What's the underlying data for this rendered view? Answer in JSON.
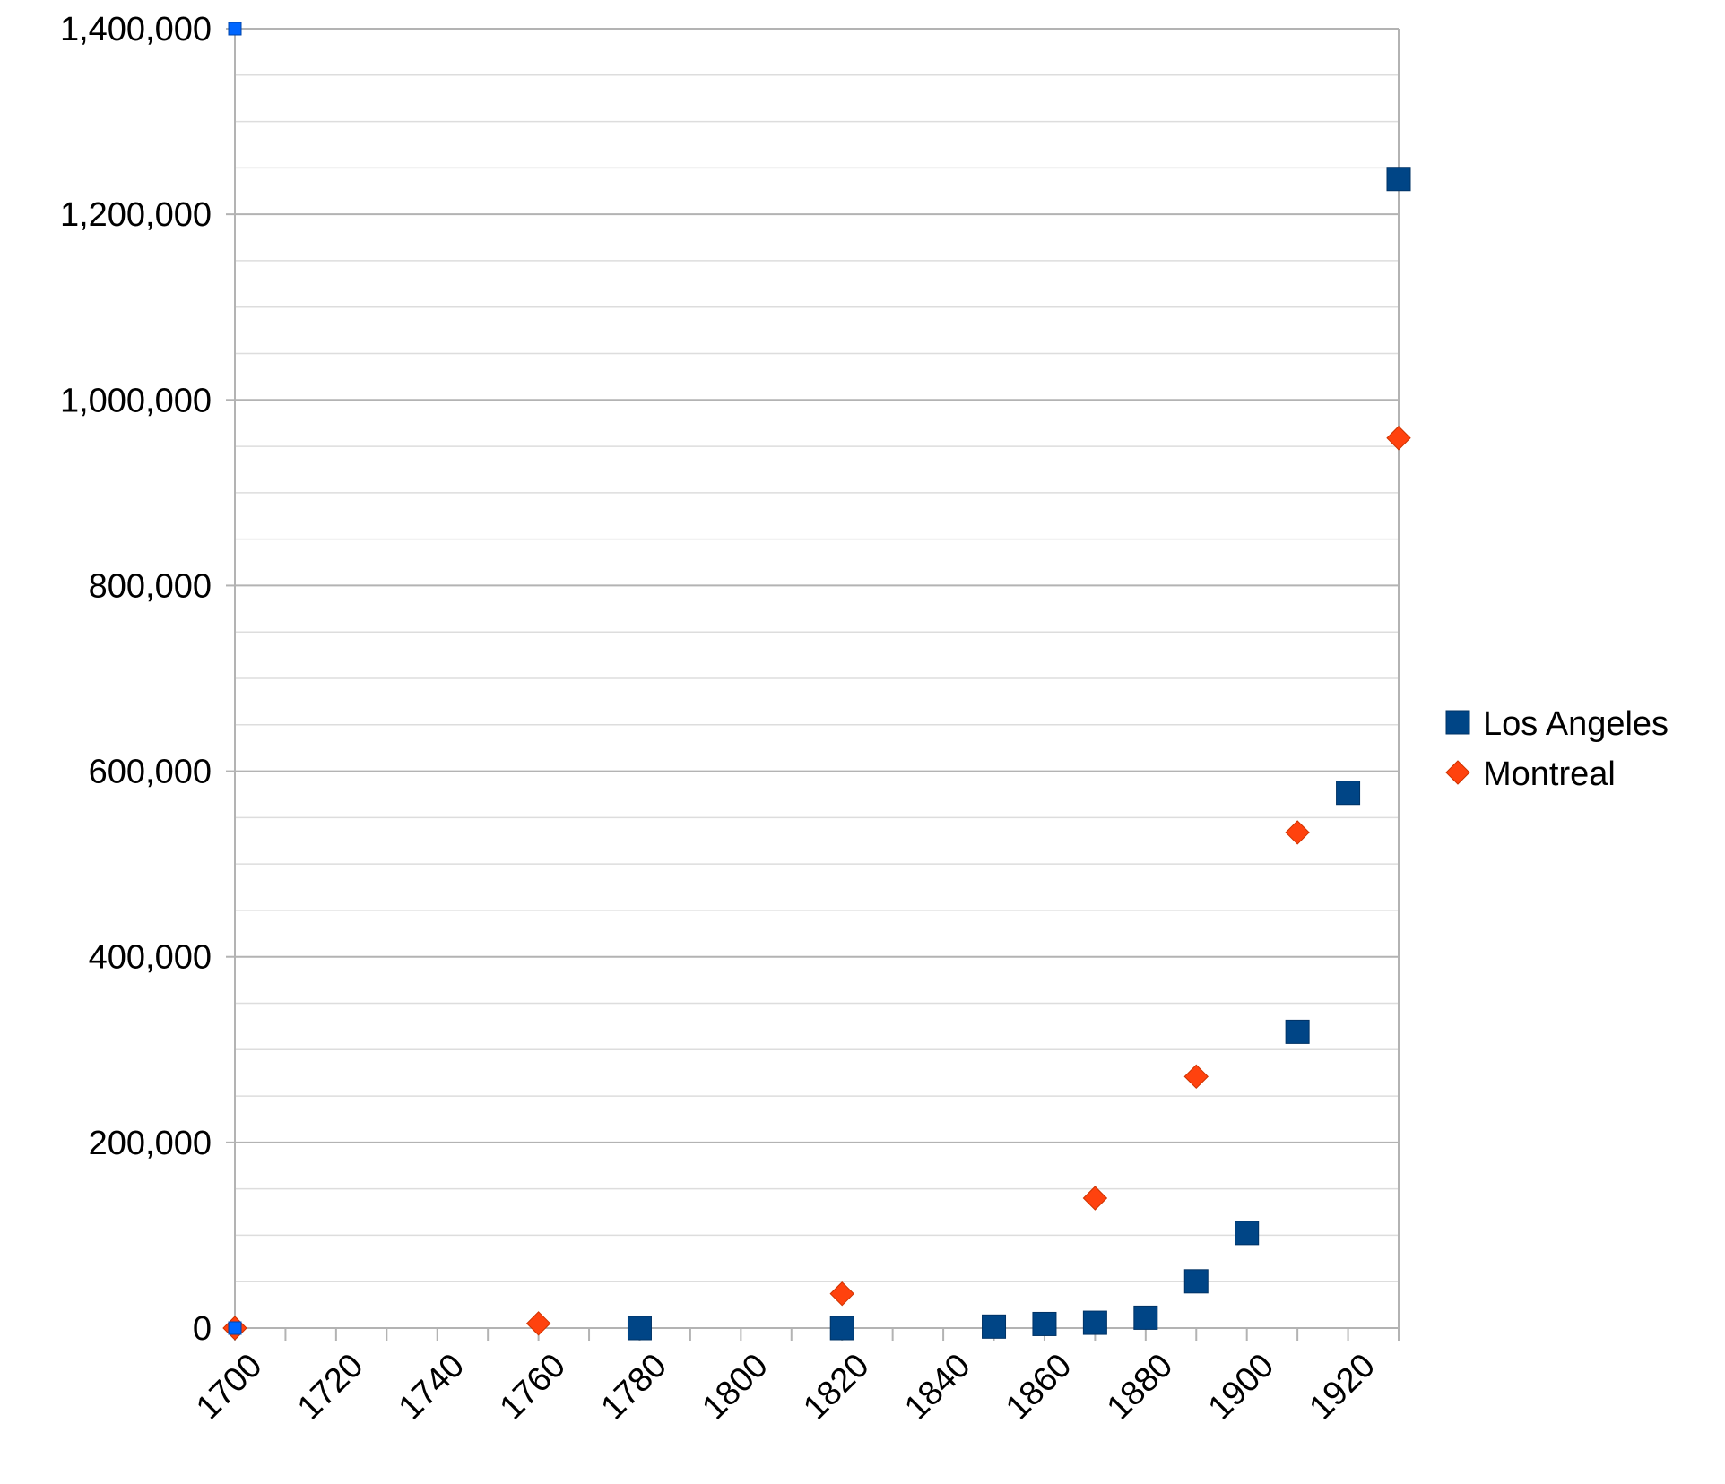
{
  "chart_data": {
    "type": "scatter",
    "title": "",
    "xlabel": "",
    "ylabel": "",
    "xlim": [
      1700,
      1930
    ],
    "ylim": [
      0,
      1400000
    ],
    "x_ticks": [
      1700,
      1720,
      1740,
      1760,
      1780,
      1800,
      1820,
      1840,
      1860,
      1880,
      1900,
      1920
    ],
    "y_ticks": [
      0,
      200000,
      400000,
      600000,
      800000,
      1000000,
      1200000,
      1400000
    ],
    "y_tick_labels": [
      "0",
      "200,000",
      "400,000",
      "600,000",
      "800,000",
      "1,000,000",
      "1,200,000",
      "1,400,000"
    ],
    "grid": "horizontal major and minor",
    "legend_position": "right",
    "series": [
      {
        "name": "Los Angeles",
        "marker": "square",
        "color": "#004586",
        "points": [
          [
            1780,
            0
          ],
          [
            1820,
            0
          ],
          [
            1850,
            1610
          ],
          [
            1860,
            4385
          ],
          [
            1870,
            5728
          ],
          [
            1880,
            11183
          ],
          [
            1890,
            50395
          ],
          [
            1900,
            102479
          ],
          [
            1910,
            319198
          ],
          [
            1920,
            576673
          ],
          [
            1930,
            1238048
          ]
        ]
      },
      {
        "name": "Montreal",
        "marker": "diamond",
        "color": "#ff420e",
        "points": [
          [
            1700,
            0
          ],
          [
            1760,
            5000
          ],
          [
            1820,
            37000
          ],
          [
            1870,
            140000
          ],
          [
            1890,
            271000
          ],
          [
            1910,
            534000
          ],
          [
            1930,
            959000
          ]
        ]
      }
    ],
    "extra_marks": [
      {
        "marker": "square-small",
        "color": "#0066ff",
        "x": 1700,
        "y": 1400000
      },
      {
        "marker": "square-small",
        "color": "#0066ff",
        "x": 1700,
        "y": 0
      }
    ]
  }
}
